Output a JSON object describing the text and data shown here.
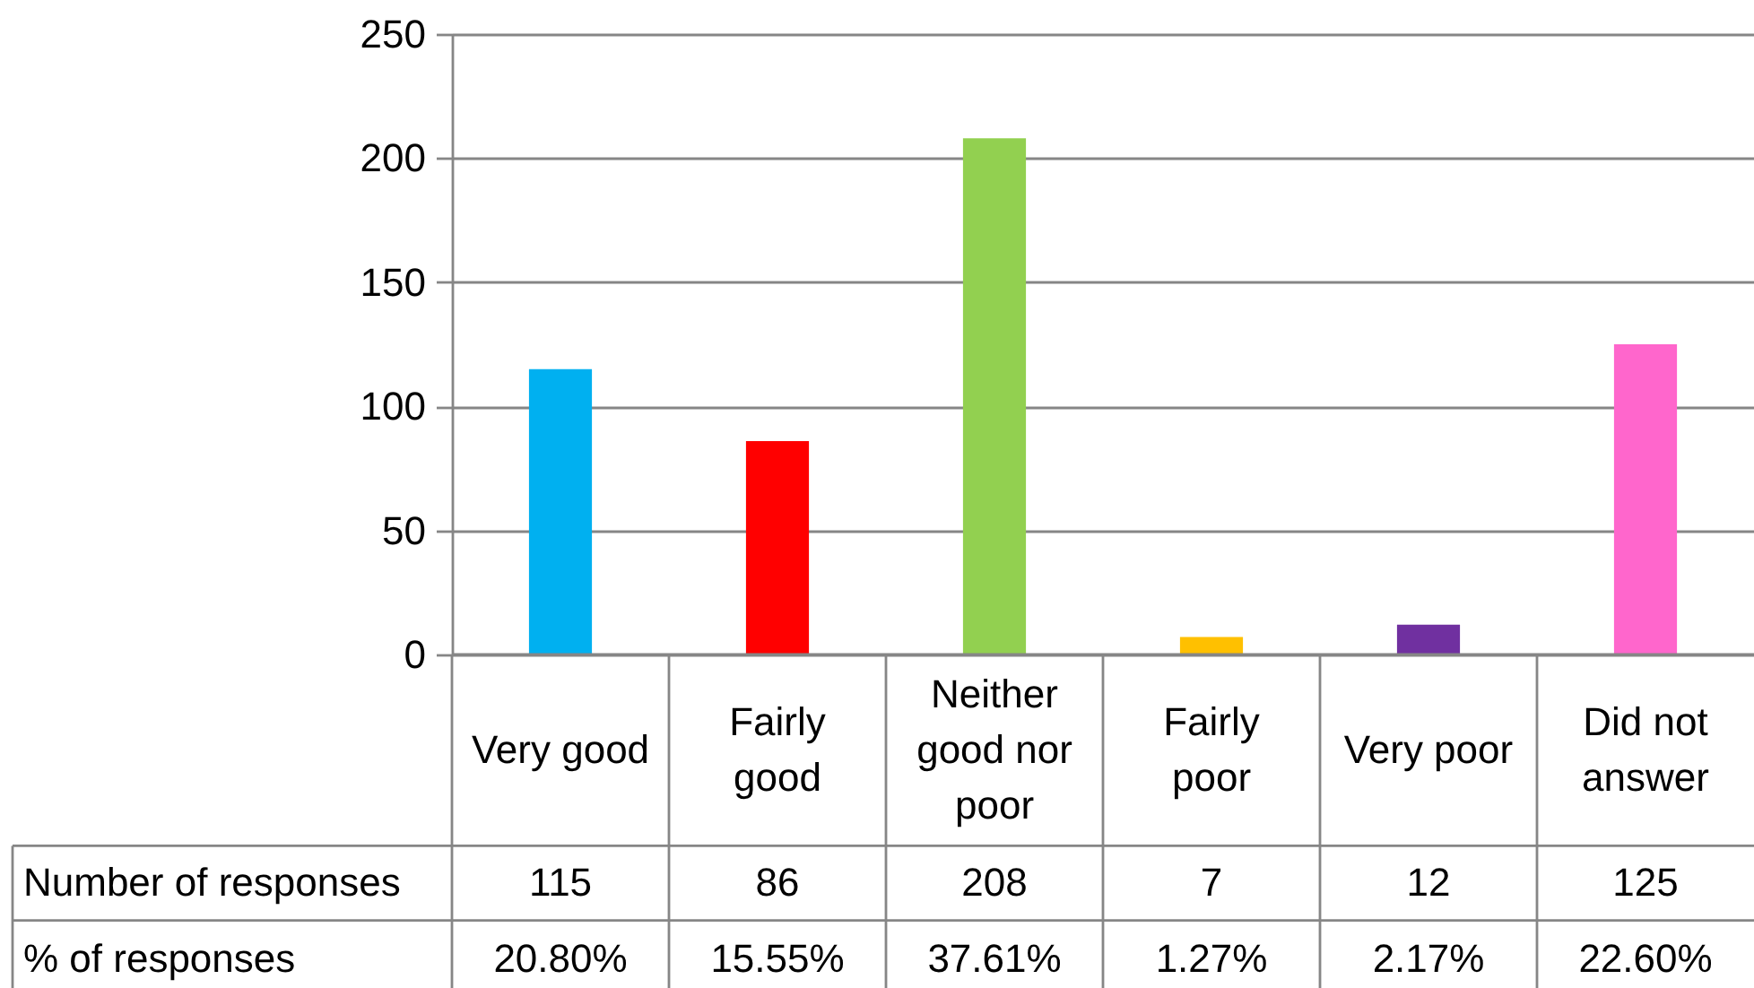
{
  "chart_data": {
    "type": "bar",
    "categories": [
      "Very good",
      "Fairly good",
      "Neither good nor poor",
      "Fairly poor",
      "Very poor",
      "Did not answer"
    ],
    "series": [
      {
        "name": "Number of responses",
        "colors": [
          "#00b0f0",
          "#ff0000",
          "#92d050",
          "#ffc000",
          "#7030a0",
          "#ff66cc"
        ],
        "values": [
          115,
          86,
          208,
          7,
          12,
          125
        ]
      }
    ],
    "ylim": [
      0,
      250
    ],
    "yticks": [
      0,
      50,
      100,
      150,
      200,
      250
    ],
    "grid": "y",
    "data_labels": true,
    "annotations": [
      "% of responses",
      "20.80%",
      "15.55%",
      "37.61%",
      "1.27%",
      "2.17%",
      "22.60%"
    ]
  }
}
